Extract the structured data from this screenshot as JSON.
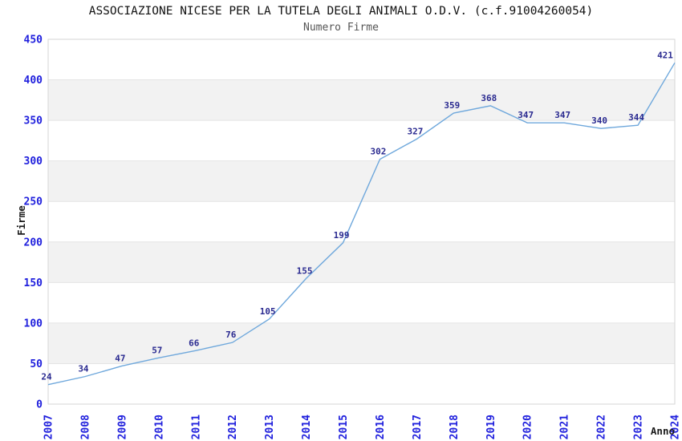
{
  "chart_data": {
    "type": "line",
    "title": "ASSOCIAZIONE NICESE PER LA TUTELA DEGLI ANIMALI O.D.V. (c.f.91004260054)",
    "subtitle": "Numero Firme",
    "xlabel": "Anno",
    "ylabel": "Firme",
    "categories": [
      "2007",
      "2008",
      "2009",
      "2010",
      "2011",
      "2012",
      "2013",
      "2014",
      "2015",
      "2016",
      "2017",
      "2018",
      "2019",
      "2020",
      "2021",
      "2022",
      "2023",
      "2024"
    ],
    "values": [
      24,
      34,
      47,
      57,
      66,
      76,
      105,
      155,
      199,
      302,
      327,
      359,
      368,
      347,
      347,
      340,
      344,
      421
    ],
    "ylim": [
      0,
      450
    ],
    "y_ticks": [
      0,
      50,
      100,
      150,
      200,
      250,
      300,
      350,
      400,
      450
    ],
    "grid": "horizontal-bands",
    "legend": "none",
    "show_point_labels": true,
    "colors": {
      "line": "#6fa8dc",
      "tick_label": "#2020dd",
      "point_label": "#2a2a90",
      "band": "#f2f2f2",
      "gridline": "#e4e4e4",
      "border": "#d6d6d6",
      "title": "#111111",
      "subtitle": "#555555",
      "axis_title": "#1a1a1a",
      "background": "#ffffff"
    }
  }
}
